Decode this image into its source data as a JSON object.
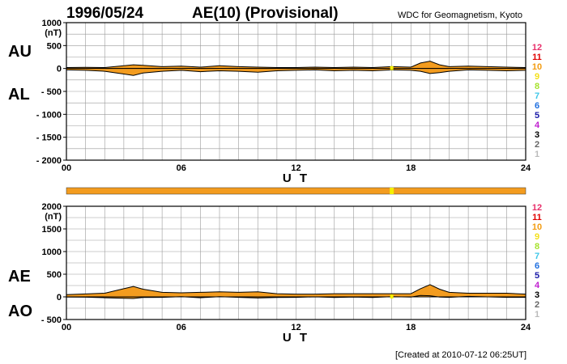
{
  "header": {
    "date": "1996/05/24",
    "title": "AE(10) (Provisional)",
    "source": "WDC for Geomagnetism, Kyoto"
  },
  "footer": {
    "created": "[Created at 2010-07-12 06:25UT]"
  },
  "legend": {
    "items": [
      {
        "label": "12",
        "color": "#e8306b"
      },
      {
        "label": "11",
        "color": "#e00000"
      },
      {
        "label": "10",
        "color": "#f39c12"
      },
      {
        "label": "9",
        "color": "#f4e01a"
      },
      {
        "label": "8",
        "color": "#a6e22e"
      },
      {
        "label": "7",
        "color": "#3fc7e8"
      },
      {
        "label": "6",
        "color": "#1e6fe0"
      },
      {
        "label": "5",
        "color": "#1a1aa8"
      },
      {
        "label": "4",
        "color": "#c020d0"
      },
      {
        "label": "3",
        "color": "#000000"
      },
      {
        "label": "2",
        "color": "#666666"
      },
      {
        "label": "1",
        "color": "#bbbbbb"
      }
    ]
  },
  "colors": {
    "fill": "#f39c1f",
    "marker": "#f4f000",
    "grid": "#999999"
  },
  "chart_data": [
    {
      "type": "area",
      "panel": "AU-AL",
      "labels": {
        "upper": "AU",
        "lower": "AL"
      },
      "unit": "(nT)",
      "xlabel": "U T",
      "xlim": [
        0,
        24
      ],
      "xticks": [
        {
          "v": 0,
          "label": "00"
        },
        {
          "v": 6,
          "label": "06"
        },
        {
          "v": 12,
          "label": "12"
        },
        {
          "v": 18,
          "label": "18"
        },
        {
          "v": 24,
          "label": "24"
        }
      ],
      "ylim": [
        -2000,
        1000
      ],
      "yticks": [
        {
          "v": 1000,
          "label": "1000"
        },
        {
          "v": 500,
          "label": "500"
        },
        {
          "v": 0,
          "label": "0"
        },
        {
          "v": -500,
          "label": "- 500"
        },
        {
          "v": -1000,
          "label": "- 1000"
        },
        {
          "v": -1500,
          "label": "- 1500"
        },
        {
          "v": -2000,
          "label": "- 2000"
        }
      ],
      "grid": true,
      "x": [
        0,
        1,
        2,
        3,
        3.5,
        4,
        5,
        6,
        7,
        8,
        9,
        10,
        11,
        12,
        13,
        14,
        15,
        16,
        17,
        18,
        18.5,
        19,
        19.5,
        20,
        21,
        22,
        23,
        24
      ],
      "series": [
        {
          "name": "AU",
          "values": [
            20,
            25,
            20,
            60,
            80,
            70,
            40,
            50,
            30,
            60,
            40,
            30,
            20,
            20,
            30,
            20,
            30,
            20,
            40,
            30,
            120,
            160,
            80,
            40,
            50,
            40,
            30,
            20
          ]
        },
        {
          "name": "AL",
          "values": [
            -30,
            -40,
            -60,
            -120,
            -150,
            -100,
            -60,
            -40,
            -70,
            -50,
            -60,
            -80,
            -50,
            -40,
            -30,
            -50,
            -40,
            -50,
            -30,
            -40,
            -60,
            -110,
            -90,
            -60,
            -30,
            -40,
            -50,
            -40
          ]
        }
      ],
      "marker_x": 17
    },
    {
      "type": "area",
      "panel": "AE-AO",
      "labels": {
        "upper": "AE",
        "lower": "AO"
      },
      "unit": "(nT)",
      "xlabel": "U T",
      "xlim": [
        0,
        24
      ],
      "xticks": [
        {
          "v": 0,
          "label": "00"
        },
        {
          "v": 6,
          "label": "06"
        },
        {
          "v": 12,
          "label": "12"
        },
        {
          "v": 18,
          "label": "18"
        },
        {
          "v": 24,
          "label": "24"
        }
      ],
      "ylim": [
        -500,
        2000
      ],
      "yticks": [
        {
          "v": 2000,
          "label": "2000"
        },
        {
          "v": 1500,
          "label": "1500"
        },
        {
          "v": 1000,
          "label": "1000"
        },
        {
          "v": 500,
          "label": "500"
        },
        {
          "v": 0,
          "label": "0"
        },
        {
          "v": -500,
          "label": "- 500"
        }
      ],
      "grid": true,
      "x": [
        0,
        1,
        2,
        3,
        3.5,
        4,
        5,
        6,
        7,
        8,
        9,
        10,
        11,
        12,
        13,
        14,
        15,
        16,
        17,
        18,
        18.5,
        19,
        19.5,
        20,
        21,
        22,
        23,
        24
      ],
      "series": [
        {
          "name": "AE",
          "values": [
            50,
            65,
            80,
            180,
            230,
            170,
            100,
            90,
            100,
            110,
            100,
            110,
            70,
            60,
            60,
            70,
            70,
            70,
            70,
            70,
            180,
            270,
            170,
            100,
            80,
            80,
            80,
            60
          ]
        },
        {
          "name": "AO",
          "values": [
            -5,
            -8,
            -20,
            -30,
            -35,
            -15,
            -10,
            5,
            -20,
            5,
            -10,
            -25,
            -15,
            -10,
            0,
            -15,
            -5,
            -15,
            5,
            -5,
            30,
            25,
            -5,
            -10,
            10,
            0,
            -10,
            -10
          ]
        }
      ],
      "marker_x": 17
    }
  ]
}
